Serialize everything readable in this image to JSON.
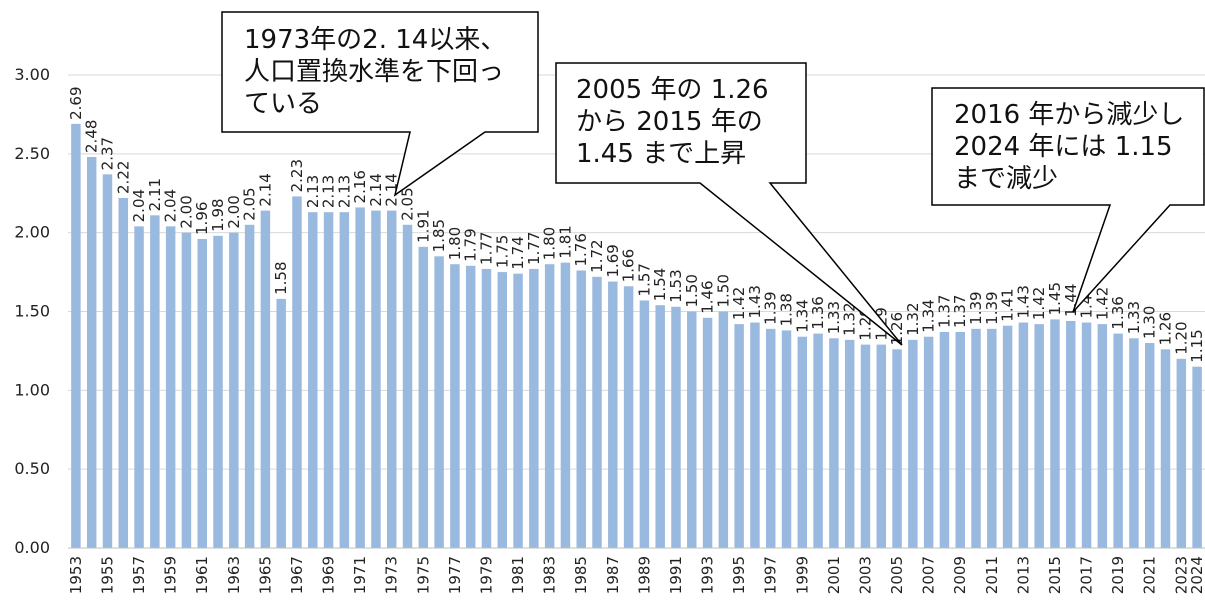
{
  "chart_data": {
    "type": "bar",
    "categories": [
      "1953",
      null,
      "1955",
      null,
      "1957",
      null,
      "1959",
      null,
      "1961",
      null,
      "1963",
      null,
      "1965",
      null,
      "1967",
      null,
      "1969",
      null,
      "1971",
      null,
      "1973",
      null,
      "1975",
      null,
      "1977",
      null,
      "1979",
      null,
      "1981",
      null,
      "1983",
      null,
      "1985",
      null,
      "1987",
      null,
      "1989",
      null,
      "1991",
      null,
      "1993",
      null,
      "1995",
      null,
      "1997",
      null,
      "1999",
      null,
      "2001",
      null,
      "2003",
      null,
      "2005",
      null,
      "2007",
      null,
      "2009",
      null,
      "2011",
      null,
      "2013",
      null,
      "2015",
      null,
      "2017",
      null,
      "2019",
      null,
      "2021",
      null,
      "2023",
      "2024"
    ],
    "values": [
      2.69,
      2.48,
      2.37,
      2.22,
      2.04,
      2.11,
      2.04,
      2.0,
      1.96,
      1.98,
      2.0,
      2.05,
      2.14,
      1.58,
      2.23,
      2.13,
      2.13,
      2.13,
      2.16,
      2.14,
      2.14,
      2.05,
      1.91,
      1.85,
      1.8,
      1.79,
      1.77,
      1.75,
      1.74,
      1.77,
      1.8,
      1.81,
      1.76,
      1.72,
      1.69,
      1.66,
      1.57,
      1.54,
      1.53,
      1.5,
      1.46,
      1.5,
      1.42,
      1.43,
      1.39,
      1.38,
      1.34,
      1.36,
      1.33,
      1.32,
      1.29,
      1.29,
      1.26,
      1.32,
      1.34,
      1.37,
      1.37,
      1.39,
      1.39,
      1.41,
      1.43,
      1.42,
      1.45,
      1.44,
      1.43,
      1.42,
      1.36,
      1.33,
      1.3,
      1.26,
      1.2,
      1.15
    ],
    "value_labels": [
      "2.69",
      "2.48",
      "2.37",
      "2.22",
      "2.04",
      "2.11",
      "2.04",
      "2.00",
      "1.96",
      "1.98",
      "2.00",
      "2.05",
      "2.14",
      "1.58",
      "2.23",
      "2.13",
      "2.13",
      "2.13",
      "2.16",
      "2.14",
      "2.14",
      "2.05",
      "1.91",
      "1.85",
      "1.80",
      "1.79",
      "1.77",
      "1.75",
      "1.74",
      "1.77",
      "1.80",
      "1.81",
      "1.76",
      "1.72",
      "1.69",
      "1.66",
      "1.57",
      "1.54",
      "1.53",
      "1.50",
      "1.46",
      "1.50",
      "1.42",
      "1.43",
      "1.39",
      "1.38",
      "1.34",
      "1.36",
      "1.33",
      "1.32",
      "1.29",
      "1.29",
      "1.26",
      "1.32",
      "1.34",
      "1.37",
      "1.37",
      "1.39",
      "1.39",
      "1.41",
      "1.43",
      "1.42",
      "1.45",
      "1.44",
      "1.43",
      "1.42",
      "1.36",
      "1.33",
      "1.30",
      "1.26",
      "1.20",
      "1.15"
    ],
    "color": "#9ab9df",
    "ylim": [
      0,
      3
    ],
    "yticks": [
      {
        "value": 0,
        "label": "0.00"
      },
      {
        "value": 0.5,
        "label": "0.50"
      },
      {
        "value": 1,
        "label": "1.00"
      },
      {
        "value": 1.5,
        "label": "1.50"
      },
      {
        "value": 2,
        "label": "2.00"
      },
      {
        "value": 2.5,
        "label": "2.50"
      },
      {
        "value": 3,
        "label": "3.00"
      }
    ],
    "grid": true,
    "annotations": [
      [
        "1973年の2. 14以来、",
        "人口置換水準を下回っ",
        "ている"
      ],
      [
        "2005 年の 1.26",
        "から 2015 年の",
        "1.45 まで上昇"
      ],
      [
        "2016 年から減少し",
        "2024 年には 1.15",
        "まで減少"
      ]
    ]
  }
}
